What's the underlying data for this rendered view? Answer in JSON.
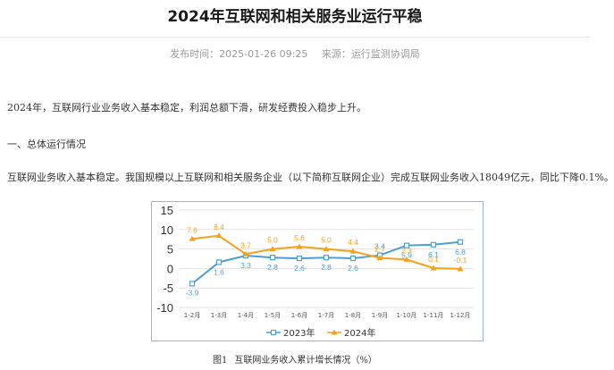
{
  "article": {
    "title": "2024年互联网和相关服务业运行平稳",
    "publish_label": "发布时间：",
    "publish_time": "2025-01-26 09:25",
    "source_label": "来源：",
    "source": "运行监测协调局",
    "para1": "2024年，互联网行业业务收入基本稳定，利润总额下滑，研发经费投入稳步上升。",
    "para2": "一、总体运行情况",
    "para3": "互联网业务收入基本稳定。我国规模以上互联网和相关服务企业（以下简称互联网企业）完成互联网业务收入18049亿元，同比下降0.1%。"
  },
  "figure": {
    "caption_num": "图1",
    "caption_text": "互联网业务收入累计增长情况（%）"
  },
  "chart_data": {
    "type": "line",
    "categories": [
      "1-2月",
      "1-3月",
      "1-4月",
      "1-5月",
      "1-6月",
      "1-7月",
      "1-8月",
      "1-9月",
      "1-10月",
      "1-11月",
      "1-12月"
    ],
    "series": [
      {
        "name": "2023年",
        "color": "#4a9fd8",
        "marker": "square",
        "values": [
          -3.9,
          1.6,
          3.3,
          2.8,
          2.6,
          2.8,
          2.6,
          3.4,
          5.9,
          6.1,
          6.8
        ],
        "labels": [
          "-3.9",
          "1.6",
          "3.3",
          "2.8",
          "2.6",
          "2.8",
          "2.6",
          "3.4",
          "5.9",
          "6.1",
          "6.8"
        ]
      },
      {
        "name": "2024年",
        "color": "#f5a11c",
        "marker": "triangle",
        "values": [
          7.6,
          8.4,
          3.7,
          5.0,
          5.6,
          5.0,
          4.4,
          2.7,
          2.3,
          0.1,
          -0.1
        ],
        "labels": [
          "7.6",
          "8.4",
          "3.7",
          "5.0",
          "5.6",
          "5.0",
          "4.4",
          "2.7",
          "2.3",
          "0.1",
          "-0.1"
        ]
      }
    ],
    "ylim": [
      -10,
      15
    ],
    "yticks": [
      "15",
      "10",
      "5",
      "0",
      "-5",
      "-10"
    ],
    "grid": true,
    "legend": "bottom"
  }
}
